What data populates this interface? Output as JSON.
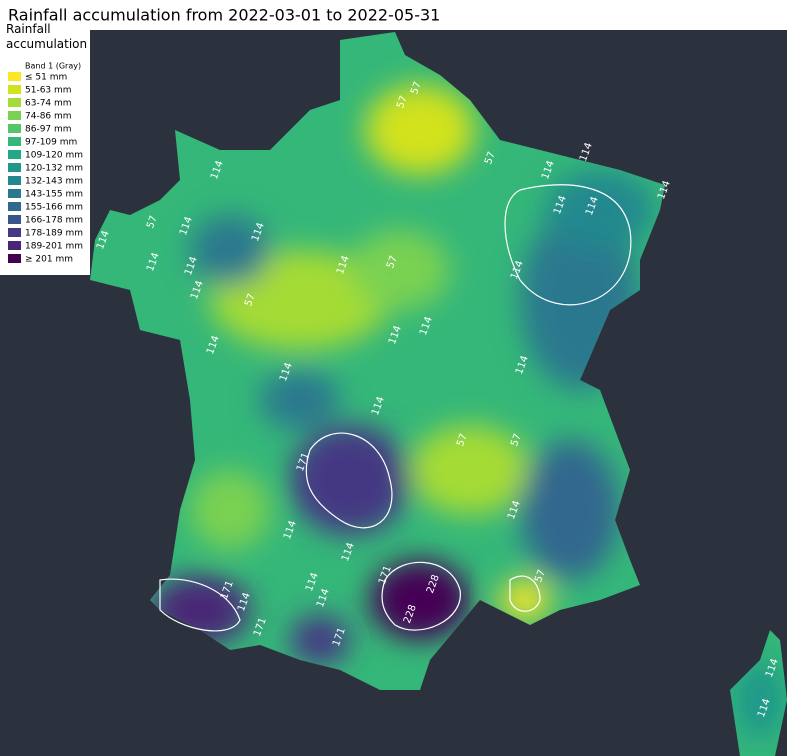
{
  "title": "Rainfall accumulation from 2022-03-01 to 2022-05-31",
  "legend": {
    "title": "Rainfall accumulation",
    "band": "Band 1 (Gray)",
    "items": [
      {
        "label": "≤ 51 mm",
        "color": "#fde725"
      },
      {
        "label": "51-63 mm",
        "color": "#d2e21b"
      },
      {
        "label": "63-74 mm",
        "color": "#a5db36"
      },
      {
        "label": "74-86 mm",
        "color": "#7ad151"
      },
      {
        "label": "86-97 mm",
        "color": "#54c568"
      },
      {
        "label": "97-109 mm",
        "color": "#35b779"
      },
      {
        "label": "109-120 mm",
        "color": "#22a884"
      },
      {
        "label": "120-132 mm",
        "color": "#1f988b"
      },
      {
        "label": "132-143 mm",
        "color": "#23888e"
      },
      {
        "label": "143-155 mm",
        "color": "#2a788e"
      },
      {
        "label": "155-166 mm",
        "color": "#31688e"
      },
      {
        "label": "166-178 mm",
        "color": "#39568c"
      },
      {
        "label": "178-189 mm",
        "color": "#443983"
      },
      {
        "label": "189-201 mm",
        "color": "#482677"
      },
      {
        "label": "≥ 201 mm",
        "color": "#440154"
      }
    ]
  },
  "contour_labels": [
    57,
    57,
    57,
    114,
    114,
    114,
    114,
    114,
    114,
    114,
    57,
    114,
    114,
    114,
    114,
    114,
    57,
    114,
    57,
    114,
    114,
    114,
    114,
    114,
    114,
    114,
    57,
    57,
    171,
    114,
    114,
    114,
    114,
    114,
    171,
    228,
    228,
    171,
    114,
    171,
    171,
    57,
    114,
    114
  ]
}
